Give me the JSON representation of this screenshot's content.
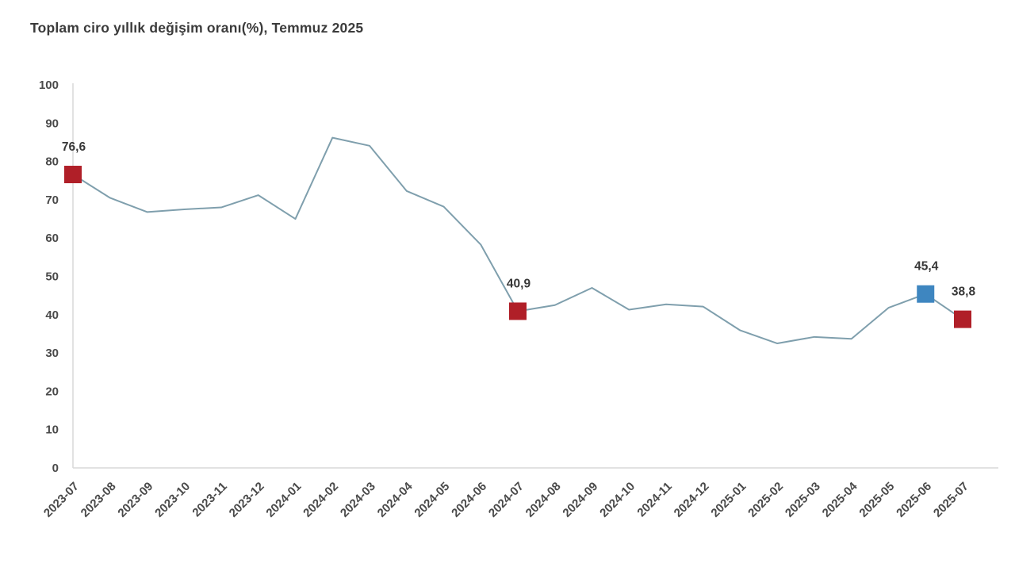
{
  "header": {
    "title": "Toplam ciro yıllık değişim oranı(%), Temmuz 2025"
  },
  "chart_data": {
    "type": "line",
    "title": "Toplam ciro yıllık değişim oranı(%), Temmuz 2025",
    "categories": [
      "2023-07",
      "2023-08",
      "2023-09",
      "2023-10",
      "2023-11",
      "2023-12",
      "2024-01",
      "2024-02",
      "2024-03",
      "2024-04",
      "2024-05",
      "2024-06",
      "2024-07",
      "2024-08",
      "2024-09",
      "2024-10",
      "2024-11",
      "2024-12",
      "2025-01",
      "2025-02",
      "2025-03",
      "2025-04",
      "2025-05",
      "2025-06",
      "2025-07"
    ],
    "values": [
      76.6,
      70.5,
      66.8,
      67.5,
      68.0,
      71.2,
      65.0,
      86.2,
      84.1,
      72.3,
      68.2,
      58.3,
      40.9,
      42.5,
      47.0,
      41.3,
      42.7,
      42.1,
      35.9,
      32.5,
      34.2,
      33.7,
      41.8,
      45.4,
      38.8
    ],
    "ylim": [
      0,
      100
    ],
    "yticks": [
      0,
      10,
      20,
      30,
      40,
      50,
      60,
      70,
      80,
      90,
      100
    ],
    "grid": false,
    "legend": false,
    "xlabel": "",
    "ylabel": "",
    "line_color": "#7f9fad",
    "axis_color": "#d9d9d9",
    "text_color": "#4a4a4a",
    "labeled_points": [
      {
        "category": "2023-07",
        "index": 0,
        "value": 76.6,
        "label": "76,6",
        "marker_color": "#b01f28"
      },
      {
        "category": "2024-07",
        "index": 12,
        "value": 40.9,
        "label": "40,9",
        "marker_color": "#b01f28"
      },
      {
        "category": "2025-06",
        "index": 23,
        "value": 45.4,
        "label": "45,4",
        "marker_color": "#3e86c0"
      },
      {
        "category": "2025-07",
        "index": 24,
        "value": 38.8,
        "label": "38,8",
        "marker_color": "#b01f28"
      }
    ]
  }
}
